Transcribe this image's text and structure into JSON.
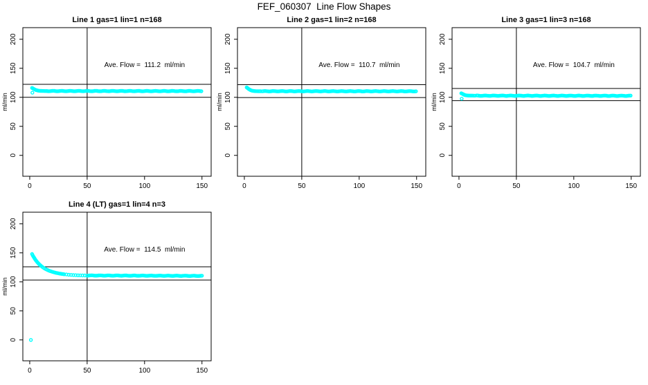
{
  "page": {
    "title": "FEF_060307  Line Flow Shapes",
    "background": "#ffffff"
  },
  "colors": {
    "points": "#00ffff",
    "axis": "#000000",
    "text": "#000000"
  },
  "chart_data": [
    {
      "type": "scatter",
      "title": "Line 1 gas=1 lin=1 n=168",
      "n": 168,
      "ave_flow": 111.2,
      "annotation": "Ave. Flow =  111.2  ml/min",
      "annotation_pos": {
        "x": 100,
        "y": 152
      },
      "ylabel": "ml/min",
      "x_ticks": [
        0,
        50,
        100,
        150
      ],
      "y_ticks": [
        0,
        50,
        100,
        150,
        200
      ],
      "xlim": [
        0,
        155
      ],
      "ylim": [
        0,
        210
      ],
      "vline_x": 50,
      "ref_lines": [
        122.3,
        100.1
      ],
      "marker": "open-circle",
      "series": {
        "head": [
          [
            2,
            116.2
          ],
          [
            2.6,
            115.6
          ],
          [
            3.2,
            114.8
          ],
          [
            3.8,
            114.1
          ],
          [
            4.4,
            113.5
          ],
          [
            5,
            112.9
          ],
          [
            5.6,
            112.5
          ],
          [
            6.2,
            112.1
          ],
          [
            7,
            111.7
          ],
          [
            7.8,
            111.4
          ],
          [
            8.6,
            111.2
          ],
          [
            9.4,
            111.1
          ],
          [
            10.2,
            111.0
          ],
          [
            11,
            110.9
          ],
          [
            12,
            110.9
          ],
          [
            13,
            110.8
          ],
          [
            14,
            110.8
          ],
          [
            15,
            110.8
          ]
        ],
        "plateau": {
          "from": 15.5,
          "to": 150,
          "step": 1,
          "y_start": 110.8,
          "y_end": 110.7,
          "jitter": 0.35
        },
        "outliers": [
          [
            2.3,
            108.0
          ]
        ]
      }
    },
    {
      "type": "scatter",
      "title": "Line 2 gas=1 lin=2 n=168",
      "n": 168,
      "ave_flow": 110.7,
      "annotation": "Ave. Flow =  110.7  ml/min",
      "annotation_pos": {
        "x": 100,
        "y": 152
      },
      "ylabel": "ml/min",
      "x_ticks": [
        0,
        50,
        100,
        150
      ],
      "y_ticks": [
        0,
        50,
        100,
        150,
        200
      ],
      "xlim": [
        0,
        155
      ],
      "ylim": [
        0,
        210
      ],
      "vline_x": 50,
      "ref_lines": [
        121.8,
        99.6
      ],
      "marker": "open-circle",
      "series": {
        "head": [
          [
            2,
            117.0
          ],
          [
            2.6,
            116.2
          ],
          [
            3.2,
            115.2
          ],
          [
            3.8,
            114.3
          ],
          [
            4.4,
            113.5
          ],
          [
            5,
            112.8
          ],
          [
            5.6,
            112.2
          ],
          [
            6.2,
            111.8
          ],
          [
            7,
            111.3
          ],
          [
            7.8,
            111.0
          ],
          [
            8.6,
            110.8
          ],
          [
            9.4,
            110.7
          ],
          [
            10.2,
            110.6
          ],
          [
            11,
            110.6
          ],
          [
            12,
            110.5
          ],
          [
            13,
            110.5
          ],
          [
            14,
            110.5
          ]
        ],
        "plateau": {
          "from": 15.5,
          "to": 150,
          "step": 1,
          "y_start": 110.5,
          "y_end": 110.4,
          "jitter": 0.35
        },
        "outliers": []
      }
    },
    {
      "type": "scatter",
      "title": "Line 3 gas=1 lin=3 n=168",
      "n": 168,
      "ave_flow": 104.7,
      "annotation": "Ave. Flow =  104.7  ml/min",
      "annotation_pos": {
        "x": 100,
        "y": 152
      },
      "ylabel": "ml/min",
      "x_ticks": [
        0,
        50,
        100,
        150
      ],
      "y_ticks": [
        0,
        50,
        100,
        150,
        200
      ],
      "xlim": [
        0,
        155
      ],
      "ylim": [
        0,
        210
      ],
      "vline_x": 50,
      "ref_lines": [
        115.2,
        94.2
      ],
      "marker": "open-circle",
      "series": {
        "head": [
          [
            2,
            106.9
          ],
          [
            2.6,
            106.4
          ],
          [
            3.2,
            105.8
          ],
          [
            3.8,
            105.1
          ],
          [
            4.4,
            104.5
          ],
          [
            5,
            104.1
          ],
          [
            5.6,
            103.7
          ],
          [
            6.2,
            103.4
          ],
          [
            7,
            103.2
          ],
          [
            7.8,
            103.1
          ],
          [
            8.6,
            103.0
          ],
          [
            9.4,
            102.9
          ],
          [
            10.2,
            102.9
          ],
          [
            11,
            102.9
          ],
          [
            12,
            102.9
          ],
          [
            13,
            102.8
          ],
          [
            14,
            102.8
          ]
        ],
        "plateau": {
          "from": 15.5,
          "to": 150,
          "step": 1,
          "y_start": 102.8,
          "y_end": 102.6,
          "jitter": 0.35
        },
        "outliers": [
          [
            2.4,
            97.6
          ]
        ]
      }
    },
    {
      "type": "scatter",
      "title": "Line 4 (LT) gas=1 lin=4 n=3",
      "n": 3,
      "ave_flow": 114.5,
      "annotation": "Ave. Flow =  114.5  ml/min",
      "annotation_pos": {
        "x": 100,
        "y": 152
      },
      "ylabel": "ml/min",
      "x_ticks": [
        0,
        50,
        100,
        150
      ],
      "y_ticks": [
        0,
        50,
        100,
        150,
        200
      ],
      "xlim": [
        0,
        155
      ],
      "ylim": [
        0,
        210
      ],
      "vline_x": 50,
      "ref_lines": [
        126.0,
        103.1
      ],
      "marker": "open-circle",
      "series": {
        "head": [
          [
            2,
            148.0
          ],
          [
            2.5,
            146.1
          ],
          [
            3,
            144.3
          ],
          [
            3.5,
            142.6
          ],
          [
            4,
            141.0
          ],
          [
            4.5,
            139.5
          ],
          [
            5,
            138.0
          ],
          [
            5.5,
            136.7
          ],
          [
            6,
            135.4
          ],
          [
            6.5,
            134.1
          ],
          [
            7,
            133.0
          ],
          [
            7.5,
            131.9
          ],
          [
            8,
            130.8
          ],
          [
            8.5,
            129.9
          ],
          [
            9,
            128.9
          ],
          [
            9.5,
            128.1
          ],
          [
            10,
            127.2
          ],
          [
            11,
            125.7
          ],
          [
            12,
            124.3
          ],
          [
            13,
            123.0
          ],
          [
            14,
            121.9
          ],
          [
            15,
            120.9
          ],
          [
            16,
            120.0
          ],
          [
            17,
            119.2
          ],
          [
            18,
            118.4
          ],
          [
            19,
            117.7
          ],
          [
            20,
            117.1
          ],
          [
            21,
            116.5
          ],
          [
            22,
            116.0
          ],
          [
            23,
            115.5
          ],
          [
            24,
            115.1
          ],
          [
            25,
            114.7
          ],
          [
            26,
            114.3
          ],
          [
            27,
            114.0
          ],
          [
            28,
            113.7
          ],
          [
            29,
            113.4
          ],
          [
            30,
            113.1
          ],
          [
            32,
            112.7
          ],
          [
            34,
            112.3
          ],
          [
            36,
            112.0
          ],
          [
            38,
            111.7
          ],
          [
            40,
            111.5
          ],
          [
            42,
            111.3
          ],
          [
            44,
            111.2
          ],
          [
            46,
            111.1
          ],
          [
            48,
            111.0
          ]
        ],
        "plateau": {
          "from": 50,
          "to": 150,
          "step": 1,
          "y_start": 111.0,
          "y_end": 110.3,
          "jitter": 0.3
        },
        "outliers": [
          [
            1,
            0
          ]
        ]
      }
    }
  ]
}
